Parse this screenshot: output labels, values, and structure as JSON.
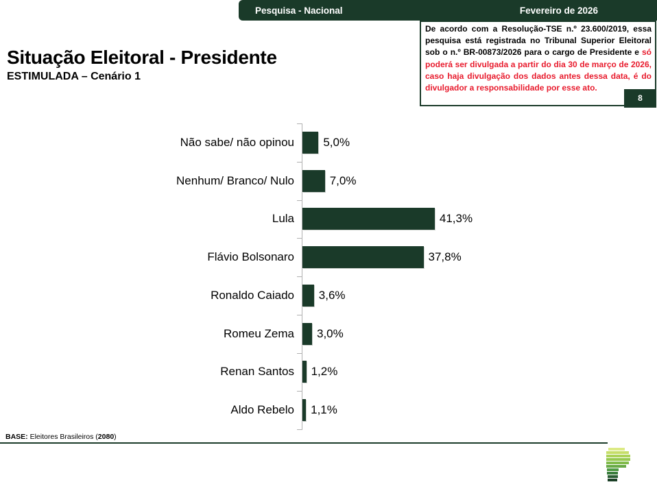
{
  "header": {
    "left": "Pesquisa - Nacional",
    "right": "Fevereiro de 2026"
  },
  "title": "Situação Eleitoral - Presidente",
  "subtitle": "ESTIMULADA – Cenário 1",
  "legal": {
    "black_part": "De acordo com a Resolução-TSE n.º 23.600/2019, essa pesquisa está registrada no Tribunal Superior Eleitoral sob o n.º BR-00873/2026 para o cargo de Presidente e ",
    "red_part": "só poderá ser divulgada a partir do dia 30 de março de 2026, caso haja divulgação dos dados antes dessa data, é do divulgador a responsabilidade por esse ato.",
    "page_number": "8"
  },
  "chart_data": {
    "type": "bar",
    "orientation": "horizontal",
    "title": "Situação Eleitoral - Presidente — ESTIMULADA – Cenário 1",
    "categories": [
      "Não sabe/ não opinou",
      "Nenhum/ Branco/ Nulo",
      "Lula",
      "Flávio Bolsonaro",
      "Ronaldo Caiado",
      "Romeu Zema",
      "Renan Santos",
      "Aldo Rebelo"
    ],
    "values": [
      5.0,
      7.0,
      41.3,
      37.8,
      3.6,
      3.0,
      1.2,
      1.1
    ],
    "value_labels": [
      "5,0%",
      "7,0%",
      "41,3%",
      "37,8%",
      "3,6%",
      "3,0%",
      "1,2%",
      "1,1%"
    ],
    "unit": "%",
    "xlim": [
      0,
      45
    ],
    "grid": false,
    "legend": false,
    "bar_color": "#1a3a29"
  },
  "footer": {
    "base_label": "BASE:",
    "base_text": " Eleitores Brasileiros (",
    "base_value": "2080",
    "base_close": ")"
  },
  "logo": {
    "name": "parana-pesquisas-logo",
    "stripes": [
      {
        "x": 3,
        "w": 24,
        "color": "#dcea85"
      },
      {
        "x": 0,
        "w": 33,
        "color": "#c6de69"
      },
      {
        "x": 0,
        "w": 35,
        "color": "#abd257"
      },
      {
        "x": 0,
        "w": 35,
        "color": "#96c94f"
      },
      {
        "x": 0,
        "w": 33,
        "color": "#81bb4b"
      },
      {
        "x": 0,
        "w": 29,
        "color": "#68aa46"
      },
      {
        "x": 1,
        "w": 17,
        "color": "#4f9a44"
      },
      {
        "x": 1,
        "w": 16,
        "color": "#3a7d3c"
      },
      {
        "x": 2,
        "w": 15,
        "color": "#2a5d32"
      },
      {
        "x": 2,
        "w": 14,
        "color": "#1b3f26"
      }
    ]
  },
  "colors": {
    "dark_green": "#1a3a29",
    "red": "#e81b2d",
    "axis_gray": "#b0b0b0"
  }
}
